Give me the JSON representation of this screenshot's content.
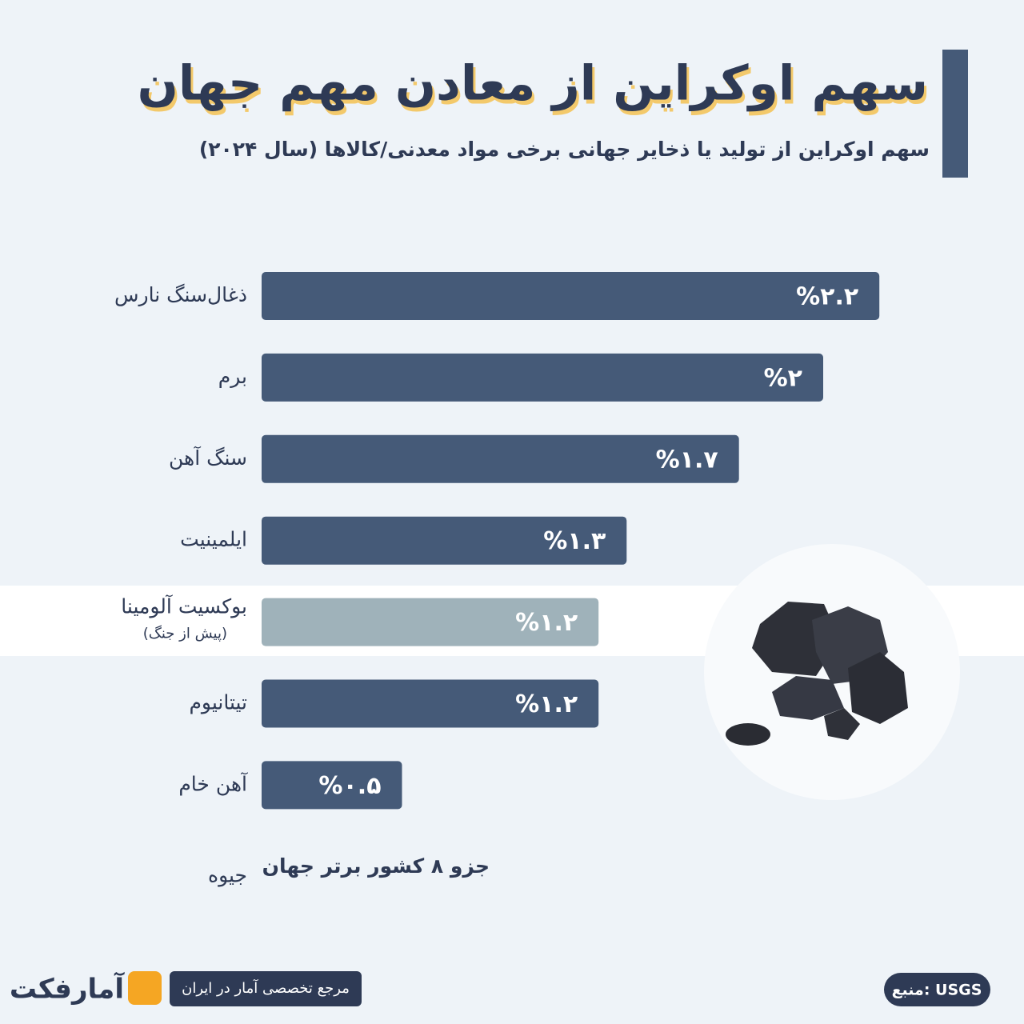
{
  "chart_data": {
    "type": "bar",
    "title": "سهم اوکراین از معادن مهم جهان",
    "subtitle": "سهم اوکراین از تولید یا ذخایر جهانی برخی مواد معدنی/کالاها (سال ۲۰۲۴)",
    "categories": [
      "ذغال‌سنگ نارس",
      "برم",
      "سنگ آهن",
      "ایلمینیت",
      "بوکسیت آلومینا",
      "تیتانیوم",
      "آهن خام",
      "جیوه"
    ],
    "notes": [
      null,
      null,
      null,
      null,
      "(پیش از جنگ)",
      null,
      null,
      null
    ],
    "values": [
      2.2,
      2,
      1.7,
      1.3,
      1.2,
      1.2,
      0.5,
      null
    ],
    "value_labels": [
      "%۲.۲",
      "%۲",
      "%۱.۷",
      "%۱.۳",
      "%۱.۲",
      "%۱.۲",
      "%۰.۵",
      null
    ],
    "colors": [
      "#455a78",
      "#455a78",
      "#455a78",
      "#455a78",
      "#9fb2ba",
      "#455a78",
      "#455a78",
      null
    ],
    "annotation": "جزو ۸ کشور برتر جهان",
    "source": "منبع: USGS",
    "brand": "آمارفکت",
    "tagline": "مرجع تخصصی آمار در ایران"
  }
}
